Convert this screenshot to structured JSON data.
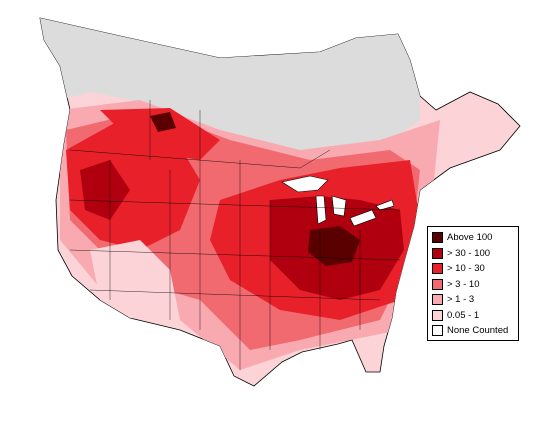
{
  "map": {
    "colors": {
      "no_count": "#dcdcdc",
      "land": "#ffffff",
      "water": "#ffffff",
      "boundary": "#000000"
    }
  },
  "legend": {
    "items": [
      {
        "label": "Above 100",
        "color": "#5a0000"
      },
      {
        "label": "> 30 - 100",
        "color": "#b00010"
      },
      {
        "label": "> 10 - 30",
        "color": "#e8202a"
      },
      {
        "label": "> 3 - 10",
        "color": "#f06a70"
      },
      {
        "label": "> 1 - 3",
        "color": "#f8aab0"
      },
      {
        "label": "0.05 - 1",
        "color": "#fcd4d8"
      },
      {
        "label": "None Counted",
        "color": "#ffffff"
      }
    ]
  }
}
